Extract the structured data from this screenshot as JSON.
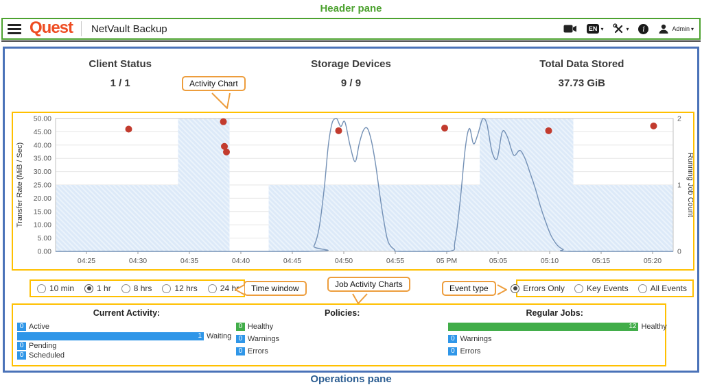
{
  "annotations": {
    "header_pane_label": "Header pane",
    "operations_pane_label": "Operations pane",
    "activity_chart_callout": "Activity Chart",
    "time_window_callout": "Time window",
    "job_activity_charts_callout": "Job Activity Charts",
    "event_type_callout": "Event type"
  },
  "header": {
    "logo_text": "Quest",
    "app_title": "NetVault Backup",
    "language_badge": "EN",
    "user_label": "Admin"
  },
  "summary_tiles": [
    {
      "label": "Client Status",
      "value": "1 / 1"
    },
    {
      "label": "Storage Devices",
      "value": "9 / 9"
    },
    {
      "label": "Total Data Stored",
      "value": "37.73 GiB"
    }
  ],
  "time_window": {
    "options": [
      {
        "label": "10 min",
        "selected": false
      },
      {
        "label": "1 hr",
        "selected": true
      },
      {
        "label": "8 hrs",
        "selected": false
      },
      {
        "label": "12 hrs",
        "selected": false
      },
      {
        "label": "24 hrs",
        "selected": false
      }
    ]
  },
  "event_type": {
    "options": [
      {
        "label": "Errors Only",
        "selected": true
      },
      {
        "label": "Key Events",
        "selected": false
      },
      {
        "label": "All Events",
        "selected": false
      }
    ]
  },
  "chart_data": {
    "type": "mixed",
    "x_domain_minutes": [
      262,
      322
    ],
    "x_ticks": [
      {
        "label": "04:25",
        "m": 265
      },
      {
        "label": "04:30",
        "m": 270
      },
      {
        "label": "04:35",
        "m": 275
      },
      {
        "label": "04:40",
        "m": 280
      },
      {
        "label": "04:45",
        "m": 285
      },
      {
        "label": "04:50",
        "m": 290
      },
      {
        "label": "04:55",
        "m": 295
      },
      {
        "label": "05 PM",
        "m": 300
      },
      {
        "label": "05:05",
        "m": 305
      },
      {
        "label": "05:10",
        "m": 310
      },
      {
        "label": "05:15",
        "m": 315
      },
      {
        "label": "05:20",
        "m": 320
      }
    ],
    "left_axis": {
      "label": "Transfer Rate (MiB / Sec)",
      "min": 0,
      "max": 50,
      "tick_step": 5,
      "tick_labels": [
        "50.00",
        "45.00",
        "40.00",
        "35.00",
        "30.00",
        "25.00",
        "20.00",
        "15.00",
        "10.00",
        "5.00",
        "0.00"
      ]
    },
    "right_axis": {
      "label": "Running Job Count",
      "min": 0,
      "max": 2,
      "tick_step": 1,
      "tick_labels": [
        "2",
        "1",
        "0"
      ]
    },
    "series": [
      {
        "name": "running-jobs-area",
        "type": "area",
        "axis": "right",
        "segments": [
          {
            "from": 262,
            "to": 273.9,
            "value": 1
          },
          {
            "from": 273.9,
            "to": 278.9,
            "value": 2
          },
          {
            "from": 282.7,
            "to": 303.2,
            "value": 1
          },
          {
            "from": 303.2,
            "to": 312.3,
            "value": 2
          },
          {
            "from": 312.3,
            "to": 322,
            "value": 1
          }
        ]
      },
      {
        "name": "running-job-count-line",
        "type": "line",
        "axis": "right",
        "points": [
          [
            262,
            0
          ],
          [
            286.5,
            0
          ],
          [
            287.1,
            0.08
          ],
          [
            287.6,
            0.35
          ],
          [
            288.1,
            0.95
          ],
          [
            288.5,
            1.6
          ],
          [
            288.9,
            1.95
          ],
          [
            289.3,
            2
          ],
          [
            289.7,
            1.88
          ],
          [
            290.1,
            1.95
          ],
          [
            290.6,
            1.6
          ],
          [
            291.1,
            1.35
          ],
          [
            291.5,
            1.62
          ],
          [
            291.9,
            1.82
          ],
          [
            292.3,
            1.85
          ],
          [
            292.7,
            1.65
          ],
          [
            293.1,
            1.3
          ],
          [
            293.5,
            0.85
          ],
          [
            293.9,
            0.45
          ],
          [
            294.3,
            0.15
          ],
          [
            294.9,
            0.03
          ],
          [
            295.5,
            0
          ],
          [
            300.2,
            0
          ],
          [
            300.8,
            0.15
          ],
          [
            301.3,
            0.75
          ],
          [
            301.8,
            1.55
          ],
          [
            302.2,
            1.85
          ],
          [
            302.6,
            1.62
          ],
          [
            303,
            1.75
          ],
          [
            303.5,
            2
          ],
          [
            303.9,
            1.92
          ],
          [
            304.4,
            1.5
          ],
          [
            304.9,
            1.4
          ],
          [
            305.4,
            1.8
          ],
          [
            305.9,
            1.72
          ],
          [
            306.5,
            1.45
          ],
          [
            307.1,
            1.52
          ],
          [
            307.6,
            1.4
          ],
          [
            308.1,
            1.18
          ],
          [
            308.6,
            0.95
          ],
          [
            309.1,
            0.68
          ],
          [
            309.6,
            0.45
          ],
          [
            310.1,
            0.25
          ],
          [
            310.7,
            0.1
          ],
          [
            311.3,
            0.03
          ],
          [
            312,
            0
          ],
          [
            322,
            0
          ]
        ]
      },
      {
        "name": "error-events",
        "type": "scatter",
        "axis": "left",
        "points": [
          [
            269.1,
            46
          ],
          [
            278.3,
            48.8
          ],
          [
            278.4,
            39.5
          ],
          [
            278.6,
            37.4
          ],
          [
            289.5,
            45.4
          ],
          [
            299.8,
            46.4
          ],
          [
            309.9,
            45.4
          ],
          [
            320.1,
            47.2
          ]
        ]
      }
    ]
  },
  "operations": {
    "current_activity": {
      "title": "Current Activity:",
      "rows": [
        {
          "label": "Active",
          "value": 0,
          "frac": 0,
          "color": "#2f96e8"
        },
        {
          "label": "Waiting",
          "value": 1,
          "frac": 1,
          "color": "#2f96e8"
        },
        {
          "label": "Pending",
          "value": 0,
          "frac": 0,
          "color": "#2f96e8"
        },
        {
          "label": "Scheduled",
          "value": 0,
          "frac": 0,
          "color": "#2f96e8"
        }
      ]
    },
    "policies": {
      "title": "Policies:",
      "rows": [
        {
          "label": "Healthy",
          "value": 0,
          "frac": 0,
          "color": "#41ad49"
        },
        {
          "label": "Warnings",
          "value": 0,
          "frac": 0,
          "color": "#2f96e8"
        },
        {
          "label": "Errors",
          "value": 0,
          "frac": 0,
          "color": "#2f96e8"
        }
      ]
    },
    "regular_jobs": {
      "title": "Regular Jobs:",
      "rows": [
        {
          "label": "Healthy",
          "value": 12,
          "frac": 1,
          "color": "#41ad49"
        },
        {
          "label": "Warnings",
          "value": 0,
          "frac": 0,
          "color": "#2f96e8"
        },
        {
          "label": "Errors",
          "value": 0,
          "frac": 0,
          "color": "#2f96e8"
        }
      ]
    }
  },
  "colors": {
    "header_border": "#4ca22f",
    "main_border": "#4a72b8",
    "highlight_border": "#ffc000",
    "callout_border": "#ed9d3c",
    "brand": "#ee4c22",
    "line": "#7390b5",
    "event_dot": "#c23b2e",
    "area_fill": "#dce9f8"
  }
}
